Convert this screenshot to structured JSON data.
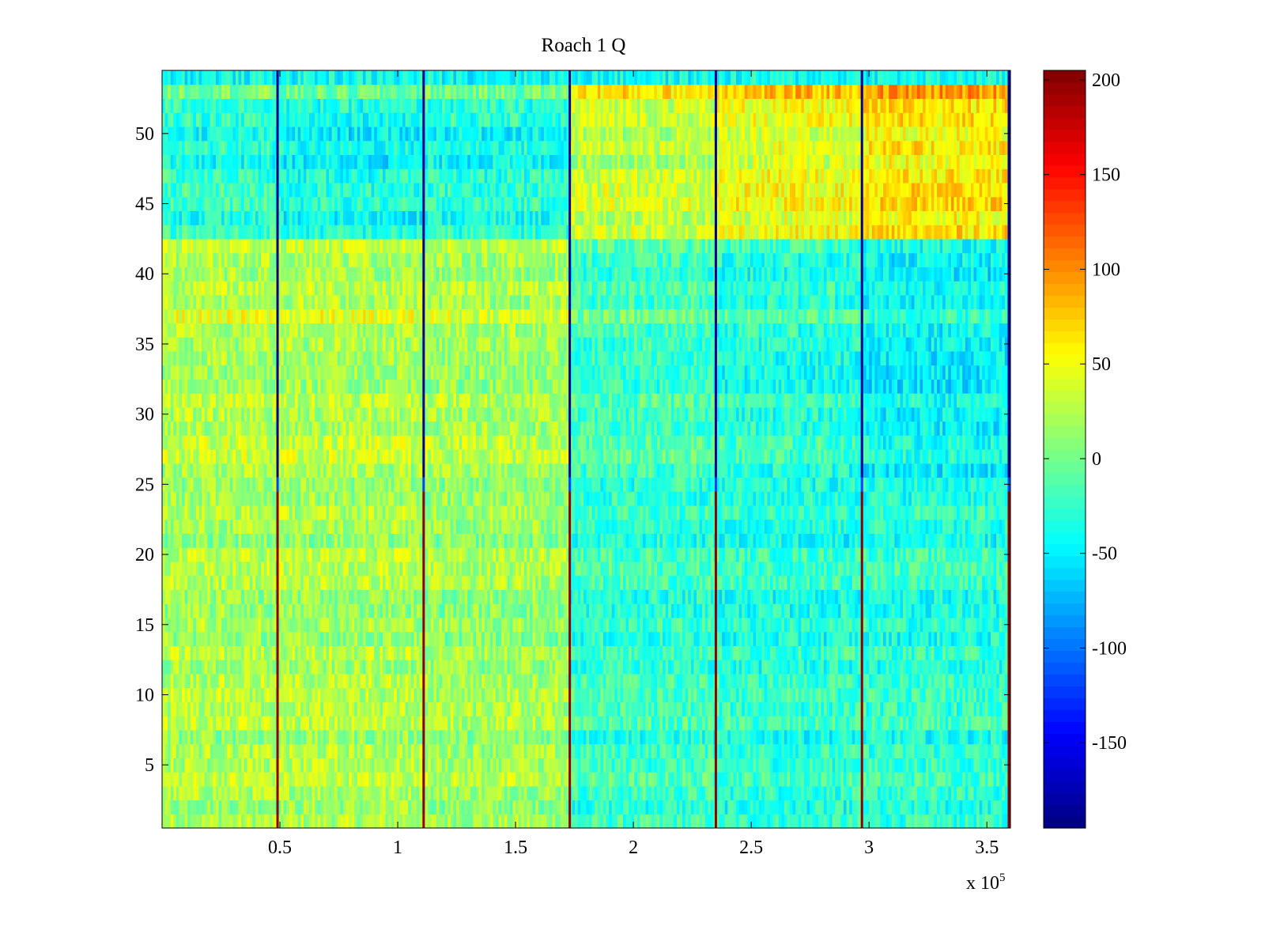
{
  "chart_data": {
    "type": "heatmap",
    "title": "Roach 1 Q",
    "xlabel": "",
    "ylabel": "",
    "x_multiplier_label": {
      "base": "x 10",
      "exponent": "5"
    },
    "xlim": [
      0,
      3.6
    ],
    "ylim": [
      0.5,
      54.5
    ],
    "x_ticks": [
      0.5,
      1,
      1.5,
      2,
      2.5,
      3,
      3.5
    ],
    "x_tick_labels": [
      "0.5",
      "1",
      "1.5",
      "2",
      "2.5",
      "3",
      "3.5"
    ],
    "y_ticks": [
      5,
      10,
      15,
      20,
      25,
      30,
      35,
      40,
      45,
      50
    ],
    "y_tick_labels": [
      "5",
      "10",
      "15",
      "20",
      "25",
      "30",
      "35",
      "40",
      "45",
      "50"
    ],
    "num_rows": 54,
    "colormap": "jet",
    "colorbar": {
      "clim": [
        -195,
        205
      ],
      "ticks": [
        200,
        150,
        100,
        50,
        0,
        -50,
        -100,
        -150
      ],
      "tick_labels": [
        "200",
        "150",
        "100",
        "50",
        "0",
        "-50",
        "-100",
        "-150"
      ]
    },
    "segment_boundaries_x1e5": [
      0.49,
      1.11,
      1.73,
      2.35,
      2.97,
      3.6
    ],
    "segments": [
      {
        "x_range": [
          0.0,
          0.49
        ],
        "mean_top": -30,
        "mean_upper_mid": 25,
        "mean_lower": 20
      },
      {
        "x_range": [
          0.49,
          1.11
        ],
        "mean_top": -40,
        "mean_upper_mid": 25,
        "mean_lower": 20
      },
      {
        "x_range": [
          1.11,
          1.73
        ],
        "mean_top": -35,
        "mean_upper_mid": 20,
        "mean_lower": 15
      },
      {
        "x_range": [
          1.73,
          2.35
        ],
        "mean_top": 30,
        "mean_upper_mid": -20,
        "mean_lower": -25
      },
      {
        "x_range": [
          2.35,
          2.97
        ],
        "mean_top": 45,
        "mean_upper_mid": -30,
        "mean_lower": -30
      },
      {
        "x_range": [
          2.97,
          3.6
        ],
        "mean_top": 60,
        "mean_upper_mid": -45,
        "mean_lower": -30
      }
    ],
    "notes": "Values are noisy per-sample; vertical lines at segment boundaries show extreme values (≈200 in rows 1-24, ≈-190 in rows 25-54)."
  }
}
